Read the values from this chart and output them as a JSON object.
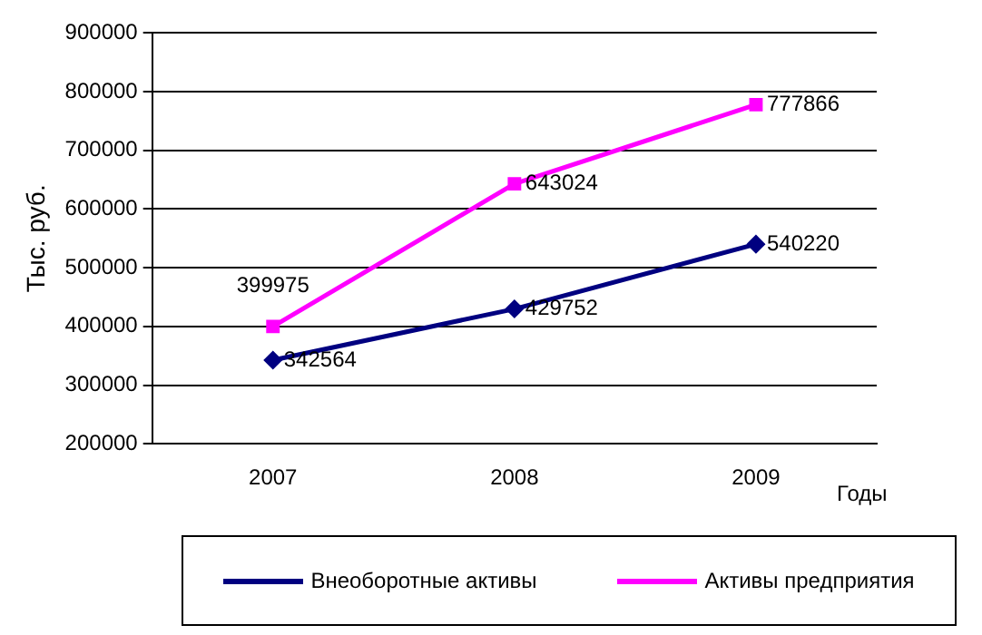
{
  "chart_data": {
    "type": "line",
    "ylabel": "Тыс. руб.",
    "xlabel": "Годы",
    "categories": [
      "2007",
      "2008",
      "2009"
    ],
    "series": [
      {
        "name": "Внеоборотные активы",
        "color": "#000080",
        "values": [
          342564,
          429752,
          540220
        ],
        "marker": "diamond"
      },
      {
        "name": "Активы предприятия",
        "color": "#ff00ff",
        "values": [
          399975,
          643024,
          777866
        ],
        "marker": "square"
      }
    ],
    "ylim": [
      200000,
      900000
    ],
    "yticks": [
      200000,
      300000,
      400000,
      500000,
      600000,
      700000,
      800000,
      900000
    ],
    "grid": "y",
    "legend": "bottom",
    "data_labels": true
  }
}
